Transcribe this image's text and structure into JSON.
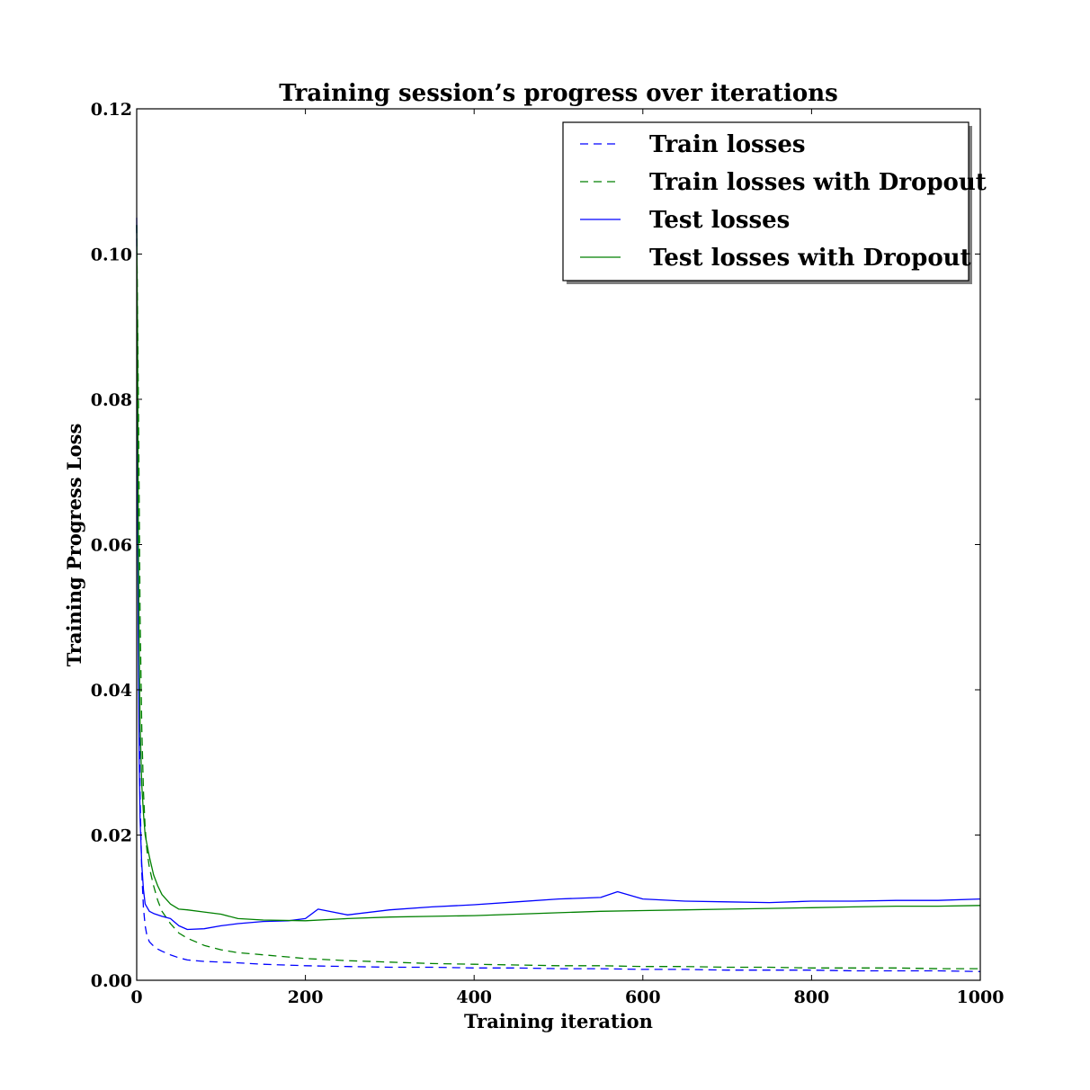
{
  "chart_data": {
    "type": "line",
    "title": "Training session’s progress over iterations",
    "xlabel": "Training iteration",
    "ylabel": "Training Progress Loss",
    "xlim": [
      0,
      1000
    ],
    "ylim": [
      0,
      0.12
    ],
    "xticks": [
      0,
      200,
      400,
      600,
      800,
      1000
    ],
    "xtick_labels": [
      "0",
      "200",
      "400",
      "600",
      "800",
      "1000"
    ],
    "yticks": [
      0,
      0.02,
      0.04,
      0.06,
      0.08,
      0.1,
      0.12
    ],
    "ytick_labels": [
      "0.00",
      "0.02",
      "0.04",
      "0.06",
      "0.08",
      "0.10",
      "0.12"
    ],
    "grid": false,
    "legend_position": "top-right",
    "series": [
      {
        "name": "Train losses",
        "color": "#0000ff",
        "style": "dashed",
        "x": [
          0,
          2,
          4,
          6,
          8,
          10,
          12,
          15,
          20,
          25,
          30,
          40,
          50,
          60,
          80,
          100,
          120,
          150,
          200,
          250,
          300,
          350,
          400,
          450,
          500,
          550,
          600,
          650,
          700,
          750,
          800,
          850,
          900,
          950,
          1000
        ],
        "y": [
          0.104,
          0.05,
          0.025,
          0.015,
          0.01,
          0.0075,
          0.0062,
          0.0053,
          0.0047,
          0.0043,
          0.004,
          0.0035,
          0.0031,
          0.0028,
          0.0026,
          0.0025,
          0.0024,
          0.0022,
          0.002,
          0.0019,
          0.0018,
          0.0018,
          0.0017,
          0.0017,
          0.0016,
          0.0016,
          0.0015,
          0.0015,
          0.0014,
          0.0014,
          0.0014,
          0.0013,
          0.0013,
          0.0013,
          0.0012
        ]
      },
      {
        "name": "Train losses with Dropout",
        "color": "#008000",
        "style": "dashed",
        "x": [
          0,
          2,
          4,
          6,
          8,
          10,
          12,
          15,
          20,
          25,
          30,
          40,
          50,
          60,
          80,
          100,
          120,
          150,
          200,
          250,
          300,
          350,
          400,
          450,
          500,
          550,
          600,
          650,
          700,
          750,
          800,
          850,
          900,
          950,
          1000
        ],
        "y": [
          0.104,
          0.08,
          0.05,
          0.035,
          0.026,
          0.021,
          0.018,
          0.0155,
          0.013,
          0.011,
          0.0095,
          0.0078,
          0.0065,
          0.0058,
          0.0048,
          0.0042,
          0.0038,
          0.0035,
          0.003,
          0.0027,
          0.0025,
          0.0023,
          0.0022,
          0.0021,
          0.002,
          0.002,
          0.0019,
          0.0019,
          0.0018,
          0.0018,
          0.0017,
          0.0017,
          0.0017,
          0.0016,
          0.0016
        ]
      },
      {
        "name": "Test losses",
        "color": "#0000ff",
        "style": "solid",
        "x": [
          0,
          1,
          2,
          3,
          4,
          6,
          8,
          10,
          15,
          20,
          30,
          40,
          50,
          60,
          80,
          100,
          120,
          150,
          180,
          200,
          215,
          250,
          300,
          350,
          400,
          450,
          500,
          550,
          570,
          600,
          650,
          700,
          750,
          800,
          850,
          900,
          950,
          1000
        ],
        "y": [
          0.105,
          0.07,
          0.045,
          0.03,
          0.022,
          0.016,
          0.0125,
          0.0105,
          0.0095,
          0.0092,
          0.0088,
          0.0085,
          0.0075,
          0.007,
          0.0071,
          0.0075,
          0.0078,
          0.0081,
          0.0082,
          0.0085,
          0.0098,
          0.009,
          0.0097,
          0.0101,
          0.0104,
          0.0108,
          0.0112,
          0.0114,
          0.0122,
          0.0112,
          0.0109,
          0.0108,
          0.0107,
          0.0109,
          0.0109,
          0.011,
          0.011,
          0.0112
        ]
      },
      {
        "name": "Test losses with Dropout",
        "color": "#008000",
        "style": "solid",
        "x": [
          0,
          1,
          2,
          3,
          4,
          6,
          8,
          10,
          15,
          20,
          25,
          30,
          40,
          50,
          60,
          80,
          100,
          120,
          150,
          200,
          250,
          300,
          350,
          400,
          450,
          500,
          550,
          600,
          650,
          700,
          750,
          800,
          850,
          900,
          950,
          1000
        ],
        "y": [
          0.104,
          0.09,
          0.06,
          0.045,
          0.035,
          0.027,
          0.023,
          0.02,
          0.017,
          0.0145,
          0.013,
          0.0118,
          0.0105,
          0.0098,
          0.0097,
          0.0094,
          0.0091,
          0.0085,
          0.0083,
          0.0082,
          0.0085,
          0.0087,
          0.0088,
          0.0089,
          0.0091,
          0.0093,
          0.0095,
          0.0096,
          0.0097,
          0.0098,
          0.0099,
          0.01,
          0.0101,
          0.0102,
          0.0102,
          0.0103
        ]
      }
    ]
  }
}
